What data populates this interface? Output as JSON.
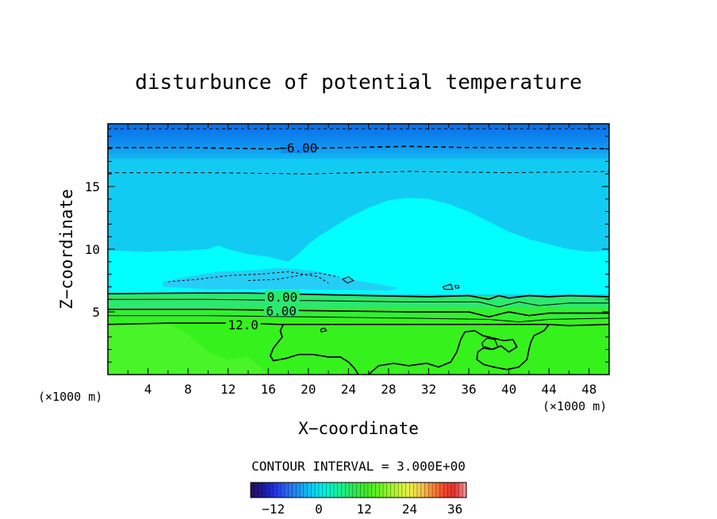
{
  "chart_data": {
    "type": "heatmap",
    "title": "disturbunce of potential temperature",
    "xlabel": "X−coordinate",
    "ylabel": "Z−coordinate",
    "x_unit_left": "(×1000 m)",
    "x_unit_right": "(×1000 m)",
    "xlim": [
      0,
      50
    ],
    "ylim": [
      0,
      20
    ],
    "x_ticks": [
      "4",
      "8",
      "12",
      "16",
      "20",
      "24",
      "28",
      "32",
      "36",
      "40",
      "44",
      "48"
    ],
    "y_ticks": [
      "5",
      "10",
      "15"
    ],
    "contour_interval_text": "CONTOUR INTERVAL = 3.000E+00",
    "contour_labels": [
      "−6.00",
      "0.00",
      "6.00",
      "12.0"
    ],
    "colorbar": {
      "min": -18,
      "max": 39,
      "tick_labels": [
        "−12",
        "0",
        "12",
        "24",
        "36"
      ]
    },
    "fields": {
      "surface_layer_value": 13,
      "surface_layer_top_km": 4.0,
      "lower_troposphere_value": 5,
      "upper_plume_value": -2,
      "plume_x_range_km": [
        18,
        42
      ],
      "plume_peak_height_km": 14,
      "upper_background_value": -4,
      "top_layer_value": -9
    }
  },
  "colors": {
    "green": "#35f21c",
    "green_light": "#52f72e",
    "green_mid": "#2ce86e",
    "cyan": "#00ffff",
    "sky": "#12e0f4",
    "blue_light": "#12cbf2",
    "blue_top": "#0e8df0",
    "blue_dark": "#0a6ee8"
  }
}
